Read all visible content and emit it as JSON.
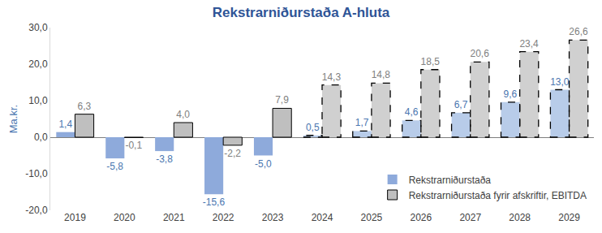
{
  "chart_data": {
    "type": "bar",
    "title": "Rekstrarniðurstaða A-hluta",
    "y_label": "Ma.kr.",
    "categories": [
      "2019",
      "2020",
      "2021",
      "2022",
      "2023",
      "2024",
      "2025",
      "2026",
      "2027",
      "2028",
      "2029"
    ],
    "series": [
      {
        "name": "Rekstrarniðurstaða",
        "values": [
          1.4,
          -5.8,
          -3.8,
          -15.6,
          -5.0,
          0.5,
          1.7,
          4.6,
          6.7,
          9.6,
          13.0
        ],
        "value_labels": [
          "1,4",
          "-5,8",
          "-3,8",
          "-15,6",
          "-5,0",
          "0,5",
          "1,7",
          "4,6",
          "6,7",
          "9,6",
          "13,0"
        ],
        "colors": [
          "#8EAADB",
          "#8EAADB",
          "#8EAADB",
          "#8EAADB",
          "#8EAADB",
          "#B8CCE9",
          "#B8CCE9",
          "#B8CCE9",
          "#B8CCE9",
          "#B8CCE9",
          "#B8CCE9"
        ],
        "line_style": [
          "none",
          "none",
          "none",
          "none",
          "none",
          "dash",
          "dash",
          "dash",
          "dash",
          "dash",
          "dash"
        ]
      },
      {
        "name": "Rekstrarniðurstaða fyrir afskriftir, EBITDA",
        "values": [
          6.3,
          -0.1,
          4.0,
          -2.2,
          7.9,
          14.3,
          14.8,
          18.5,
          20.6,
          23.4,
          26.6
        ],
        "value_labels": [
          "6,3",
          "-0,1",
          "4,0",
          "-2,2",
          "7,9",
          "14,3",
          "14,8",
          "18,5",
          "20,6",
          "23,4",
          "26,6"
        ],
        "colors": [
          "#BFBFBF",
          "#BFBFBF",
          "#BFBFBF",
          "#BFBFBF",
          "#BFBFBF",
          "#D0D0D0",
          "#D0D0D0",
          "#D0D0D0",
          "#D0D0D0",
          "#D0D0D0",
          "#D0D0D0"
        ],
        "line_style": [
          "solid",
          "solid",
          "solid",
          "solid",
          "solid",
          "dash",
          "dash",
          "dash",
          "dash",
          "dash",
          "dash"
        ]
      }
    ],
    "ylim": [
      -20,
      30
    ],
    "yticks": [
      {
        "value": -20,
        "label": "-20,0"
      },
      {
        "value": -10,
        "label": "-10,0"
      },
      {
        "value": 0,
        "label": "0,0"
      },
      {
        "value": 10,
        "label": "10,0"
      },
      {
        "value": 20,
        "label": "20,0"
      },
      {
        "value": 30,
        "label": "30,0"
      }
    ],
    "grid": false,
    "legend": "bottom right",
    "data_labels": true
  }
}
